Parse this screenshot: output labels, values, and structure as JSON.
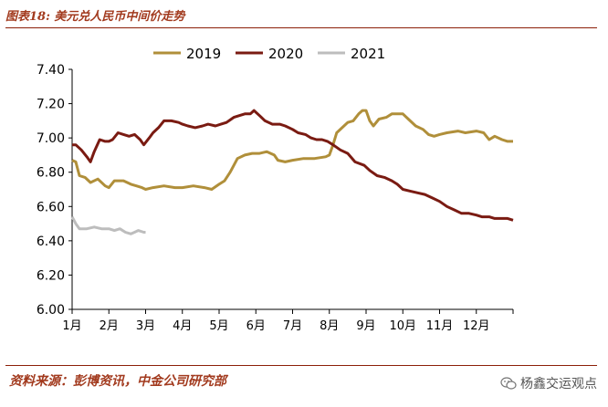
{
  "title": "图表18: 美元兑人民币中间价走势",
  "source": "资料来源：彭博资讯，中金公司研究部",
  "watermark": {
    "icon": "wechat-icon",
    "text": "杨鑫交运观点"
  },
  "chart_data": {
    "type": "line",
    "x_tick_labels": [
      "1月",
      "2月",
      "3月",
      "4月",
      "5月",
      "6月",
      "7月",
      "8月",
      "9月",
      "10月",
      "11月",
      "12月"
    ],
    "xlim": [
      1,
      13
    ],
    "ylim": [
      6.0,
      7.4
    ],
    "y_ticks": [
      6.0,
      6.2,
      6.4,
      6.6,
      6.8,
      7.0,
      7.2,
      7.4
    ],
    "legend_position": "top",
    "grid": false,
    "series": [
      {
        "name": "2019",
        "color": "#b08f3a",
        "points": [
          [
            1.0,
            6.87
          ],
          [
            1.1,
            6.86
          ],
          [
            1.2,
            6.78
          ],
          [
            1.35,
            6.77
          ],
          [
            1.5,
            6.74
          ],
          [
            1.7,
            6.76
          ],
          [
            1.9,
            6.72
          ],
          [
            2.0,
            6.71
          ],
          [
            2.15,
            6.75
          ],
          [
            2.4,
            6.75
          ],
          [
            2.6,
            6.73
          ],
          [
            2.75,
            6.72
          ],
          [
            2.9,
            6.71
          ],
          [
            3.0,
            6.7
          ],
          [
            3.2,
            6.71
          ],
          [
            3.5,
            6.72
          ],
          [
            3.8,
            6.71
          ],
          [
            4.0,
            6.71
          ],
          [
            4.3,
            6.72
          ],
          [
            4.6,
            6.71
          ],
          [
            4.8,
            6.7
          ],
          [
            5.0,
            6.73
          ],
          [
            5.15,
            6.75
          ],
          [
            5.3,
            6.8
          ],
          [
            5.5,
            6.88
          ],
          [
            5.7,
            6.9
          ],
          [
            5.9,
            6.91
          ],
          [
            6.1,
            6.91
          ],
          [
            6.3,
            6.92
          ],
          [
            6.5,
            6.9
          ],
          [
            6.6,
            6.87
          ],
          [
            6.8,
            6.86
          ],
          [
            7.0,
            6.87
          ],
          [
            7.3,
            6.88
          ],
          [
            7.6,
            6.88
          ],
          [
            7.9,
            6.89
          ],
          [
            8.0,
            6.9
          ],
          [
            8.1,
            6.96
          ],
          [
            8.2,
            7.03
          ],
          [
            8.35,
            7.06
          ],
          [
            8.5,
            7.09
          ],
          [
            8.65,
            7.1
          ],
          [
            8.8,
            7.14
          ],
          [
            8.9,
            7.16
          ],
          [
            9.0,
            7.16
          ],
          [
            9.1,
            7.1
          ],
          [
            9.2,
            7.07
          ],
          [
            9.35,
            7.11
          ],
          [
            9.55,
            7.12
          ],
          [
            9.7,
            7.14
          ],
          [
            9.85,
            7.14
          ],
          [
            10.0,
            7.14
          ],
          [
            10.15,
            7.11
          ],
          [
            10.35,
            7.07
          ],
          [
            10.55,
            7.05
          ],
          [
            10.7,
            7.02
          ],
          [
            10.85,
            7.01
          ],
          [
            11.0,
            7.02
          ],
          [
            11.2,
            7.03
          ],
          [
            11.5,
            7.04
          ],
          [
            11.7,
            7.03
          ],
          [
            12.0,
            7.04
          ],
          [
            12.2,
            7.03
          ],
          [
            12.35,
            6.99
          ],
          [
            12.5,
            7.01
          ],
          [
            12.7,
            6.99
          ],
          [
            12.85,
            6.98
          ],
          [
            13.0,
            6.98
          ]
        ]
      },
      {
        "name": "2020",
        "color": "#7a1b12",
        "points": [
          [
            1.0,
            6.96
          ],
          [
            1.1,
            6.96
          ],
          [
            1.25,
            6.93
          ],
          [
            1.4,
            6.89
          ],
          [
            1.5,
            6.86
          ],
          [
            1.6,
            6.92
          ],
          [
            1.75,
            6.99
          ],
          [
            1.9,
            6.98
          ],
          [
            2.0,
            6.98
          ],
          [
            2.1,
            6.99
          ],
          [
            2.25,
            7.03
          ],
          [
            2.4,
            7.02
          ],
          [
            2.55,
            7.01
          ],
          [
            2.7,
            7.02
          ],
          [
            2.85,
            6.99
          ],
          [
            2.95,
            6.96
          ],
          [
            3.1,
            7.0
          ],
          [
            3.2,
            7.03
          ],
          [
            3.35,
            7.06
          ],
          [
            3.5,
            7.1
          ],
          [
            3.7,
            7.1
          ],
          [
            3.9,
            7.09
          ],
          [
            4.0,
            7.08
          ],
          [
            4.15,
            7.07
          ],
          [
            4.35,
            7.06
          ],
          [
            4.55,
            7.07
          ],
          [
            4.7,
            7.08
          ],
          [
            4.9,
            7.07
          ],
          [
            5.05,
            7.08
          ],
          [
            5.2,
            7.09
          ],
          [
            5.4,
            7.12
          ],
          [
            5.55,
            7.13
          ],
          [
            5.7,
            7.14
          ],
          [
            5.85,
            7.14
          ],
          [
            5.95,
            7.16
          ],
          [
            6.1,
            7.13
          ],
          [
            6.25,
            7.1
          ],
          [
            6.45,
            7.08
          ],
          [
            6.65,
            7.08
          ],
          [
            6.8,
            7.07
          ],
          [
            7.0,
            7.05
          ],
          [
            7.15,
            7.03
          ],
          [
            7.35,
            7.02
          ],
          [
            7.5,
            7.0
          ],
          [
            7.65,
            6.99
          ],
          [
            7.8,
            6.99
          ],
          [
            7.95,
            6.98
          ],
          [
            8.1,
            6.96
          ],
          [
            8.3,
            6.93
          ],
          [
            8.5,
            6.91
          ],
          [
            8.7,
            6.86
          ],
          [
            8.95,
            6.84
          ],
          [
            9.1,
            6.81
          ],
          [
            9.3,
            6.78
          ],
          [
            9.5,
            6.77
          ],
          [
            9.7,
            6.75
          ],
          [
            9.85,
            6.73
          ],
          [
            10.0,
            6.7
          ],
          [
            10.2,
            6.69
          ],
          [
            10.4,
            6.68
          ],
          [
            10.6,
            6.67
          ],
          [
            10.8,
            6.65
          ],
          [
            11.0,
            6.63
          ],
          [
            11.2,
            6.6
          ],
          [
            11.4,
            6.58
          ],
          [
            11.6,
            6.56
          ],
          [
            11.8,
            6.56
          ],
          [
            12.0,
            6.55
          ],
          [
            12.15,
            6.54
          ],
          [
            12.35,
            6.54
          ],
          [
            12.5,
            6.53
          ],
          [
            12.7,
            6.53
          ],
          [
            12.85,
            6.53
          ],
          [
            13.0,
            6.52
          ]
        ]
      },
      {
        "name": "2021",
        "color": "#bdbdbd",
        "points": [
          [
            1.0,
            6.54
          ],
          [
            1.1,
            6.5
          ],
          [
            1.2,
            6.47
          ],
          [
            1.4,
            6.47
          ],
          [
            1.6,
            6.48
          ],
          [
            1.8,
            6.47
          ],
          [
            2.0,
            6.47
          ],
          [
            2.15,
            6.46
          ],
          [
            2.3,
            6.47
          ],
          [
            2.45,
            6.45
          ],
          [
            2.6,
            6.44
          ],
          [
            2.7,
            6.45
          ],
          [
            2.8,
            6.46
          ],
          [
            2.95,
            6.45
          ],
          [
            3.0,
            6.45
          ]
        ]
      }
    ]
  }
}
